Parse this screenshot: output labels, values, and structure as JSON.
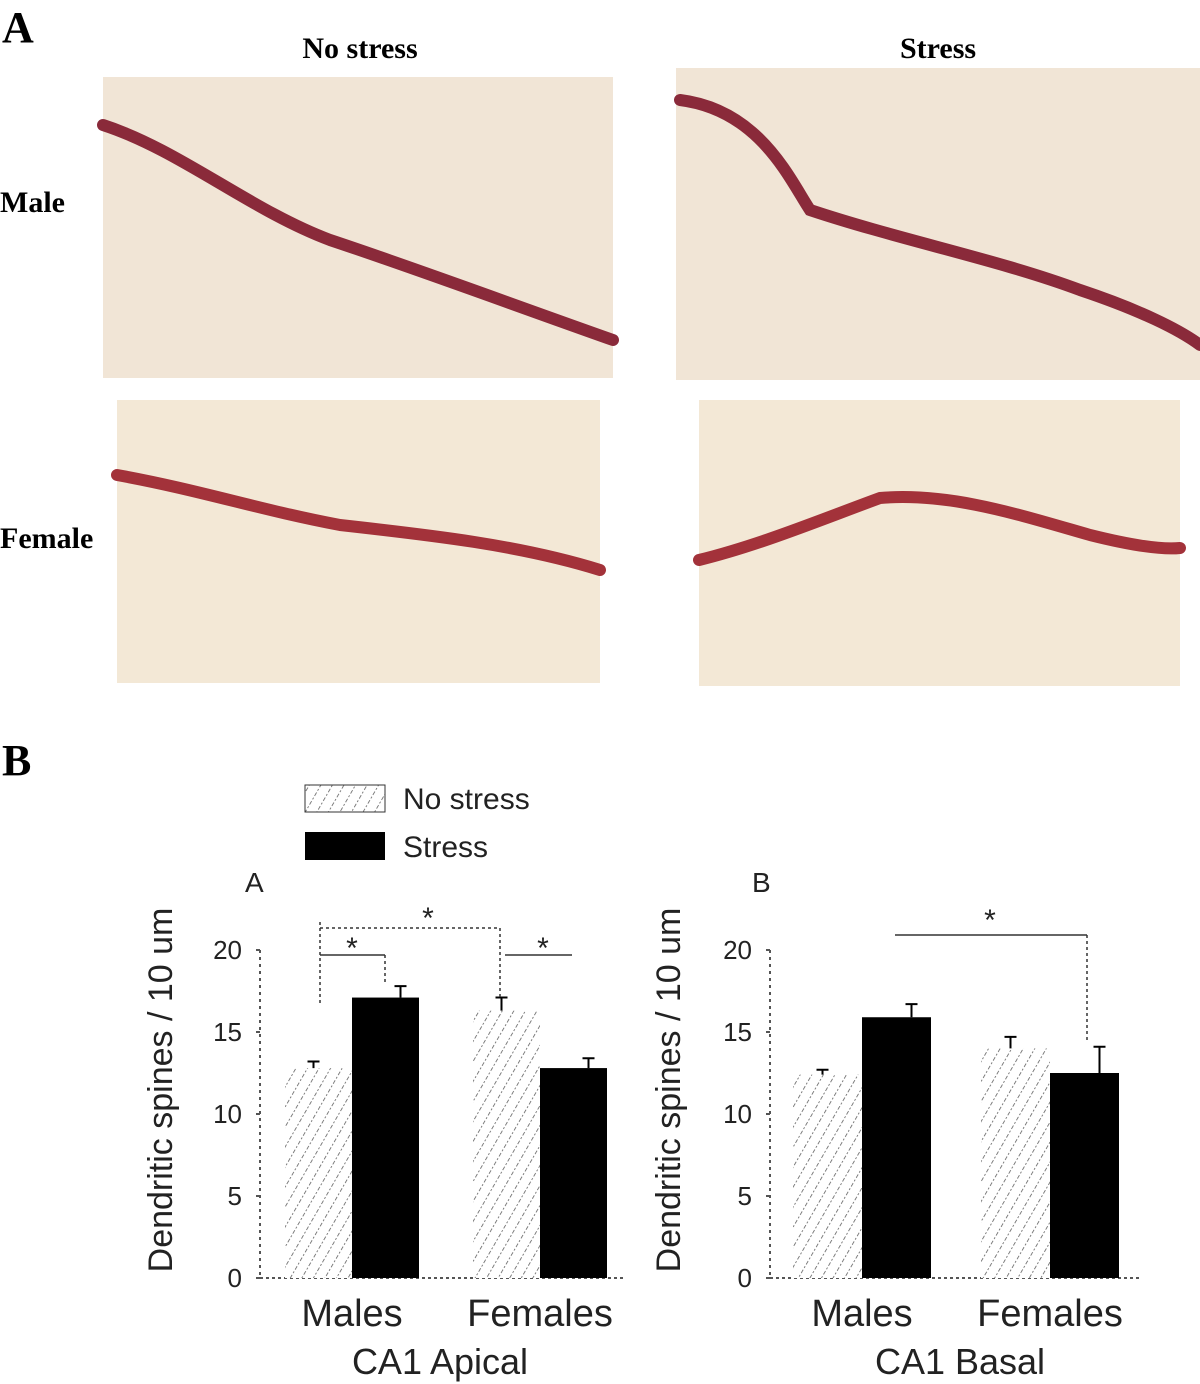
{
  "figure": {
    "panel_a_label": "A",
    "panel_b_label": "B",
    "columns": [
      "No stress",
      "Stress"
    ],
    "rows": [
      "Male",
      "Female"
    ]
  },
  "chart_data": [
    {
      "type": "bar",
      "panel": "A",
      "x_label": "CA1 Apical",
      "y_label": "Dendritic spines / 10 um",
      "categories": [
        "Males",
        "Females"
      ],
      "series": [
        {
          "name": "No stress",
          "color": "#ffffff",
          "hatch": true,
          "values": [
            12.8,
            16.3
          ],
          "errors": [
            0.4,
            0.8
          ]
        },
        {
          "name": "Stress",
          "color": "#000000",
          "values": [
            17.1,
            12.8
          ],
          "errors": [
            0.7,
            0.6
          ]
        }
      ],
      "ylim": [
        0,
        20
      ],
      "yticks": [
        0,
        5,
        10,
        15,
        20
      ],
      "annotations": [
        "*",
        "*",
        "*"
      ]
    },
    {
      "type": "bar",
      "panel": "B",
      "x_label": "CA1 Basal",
      "y_label": "Dendritic spines / 10 um",
      "categories": [
        "Males",
        "Females"
      ],
      "series": [
        {
          "color": "#ffffff",
          "hatch": true,
          "values": [
            12.4,
            14.0
          ],
          "errors": [
            0.3,
            0.7
          ]
        },
        {
          "color": "#000000",
          "values": [
            15.9,
            12.5
          ],
          "errors": [
            0.8,
            1.6
          ]
        }
      ],
      "ylim": [
        0,
        20
      ],
      "yticks": [
        0,
        5,
        10,
        15,
        20
      ],
      "annotations": [
        "*"
      ]
    }
  ]
}
